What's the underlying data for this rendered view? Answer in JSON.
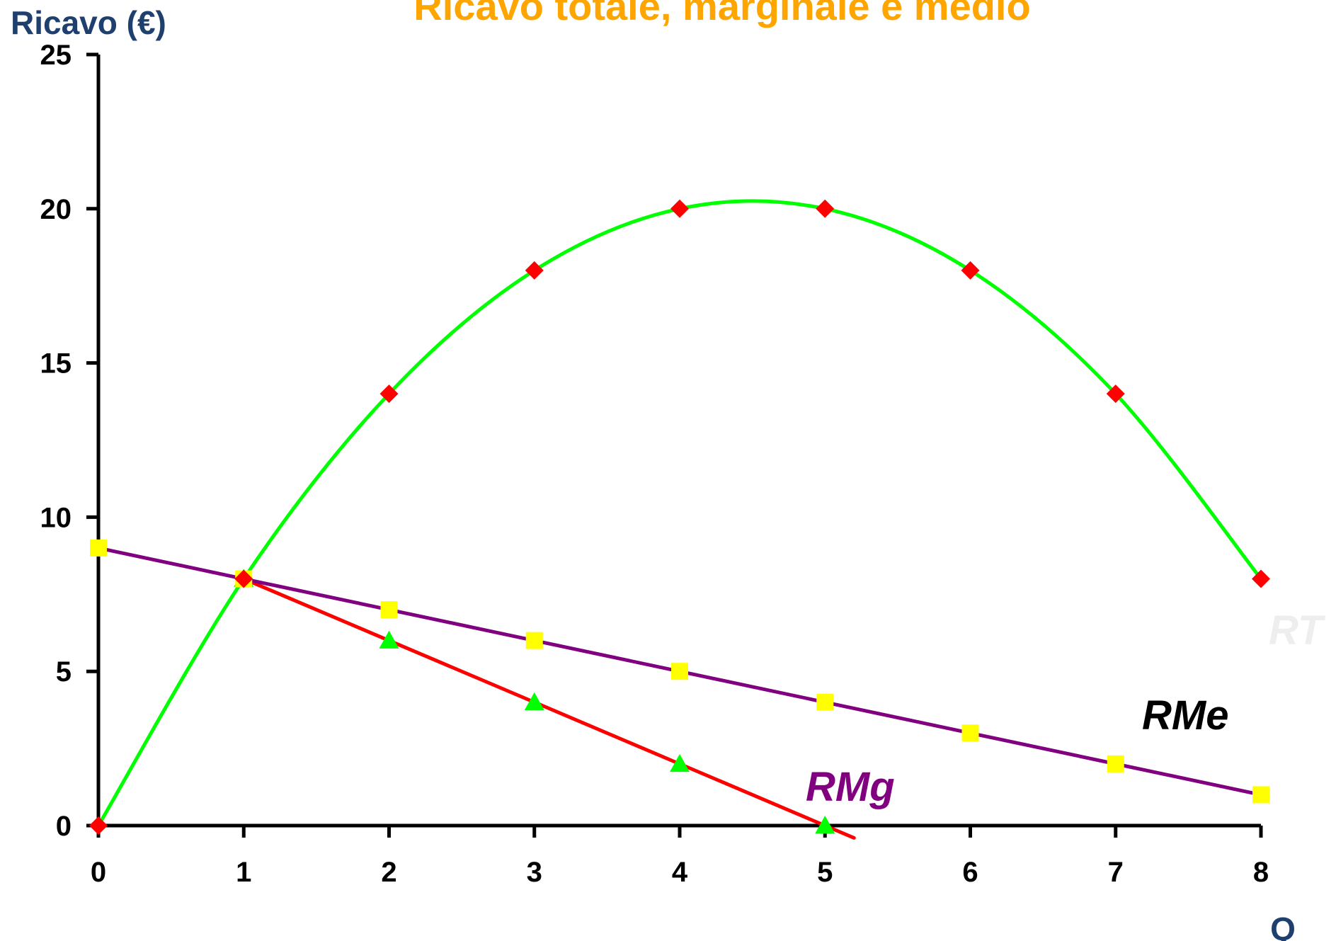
{
  "chart_data": {
    "type": "line",
    "title": "Ricavo totale, marginale e medio",
    "xlabel": "Q",
    "ylabel": "Ricavo (€)",
    "x": [
      0,
      1,
      2,
      3,
      4,
      5,
      6,
      7,
      8
    ],
    "xlim": [
      0,
      8
    ],
    "ylim": [
      0,
      25
    ],
    "yticks": [
      0,
      5,
      10,
      15,
      20,
      25
    ],
    "xticks": [
      0,
      1,
      2,
      3,
      4,
      5,
      6,
      7,
      8
    ],
    "grid": false,
    "legend": "inline labels",
    "series": [
      {
        "name": "RT",
        "color": "#00ff00",
        "marker": "diamond",
        "marker_color": "#ff0000",
        "smooth": true,
        "x": [
          0,
          1,
          2,
          3,
          4,
          5,
          6,
          7,
          8
        ],
        "values": [
          0,
          8,
          14,
          18,
          20,
          20,
          18,
          14,
          8
        ]
      },
      {
        "name": "RMe",
        "color": "#800080",
        "marker": "square",
        "marker_color": "#ffff00",
        "smooth": false,
        "x": [
          0,
          1,
          2,
          3,
          4,
          5,
          6,
          7,
          8
        ],
        "values": [
          9,
          8,
          7,
          6,
          5,
          4,
          3,
          2,
          1
        ]
      },
      {
        "name": "RMg",
        "color": "#ff0000",
        "marker": "triangle",
        "marker_color": "#00ff00",
        "smooth": false,
        "x": [
          1,
          2,
          3,
          4,
          5
        ],
        "values": [
          8,
          6,
          4,
          2,
          0
        ],
        "extends_below_axis_to": [
          5.2,
          -0.4
        ]
      }
    ],
    "colors": {
      "title": "#ffa500",
      "axis_labels": "#1f3f6e",
      "rt_label": "#eeeeee",
      "rme_label": "#000000",
      "rmg_label": "#800080"
    }
  }
}
